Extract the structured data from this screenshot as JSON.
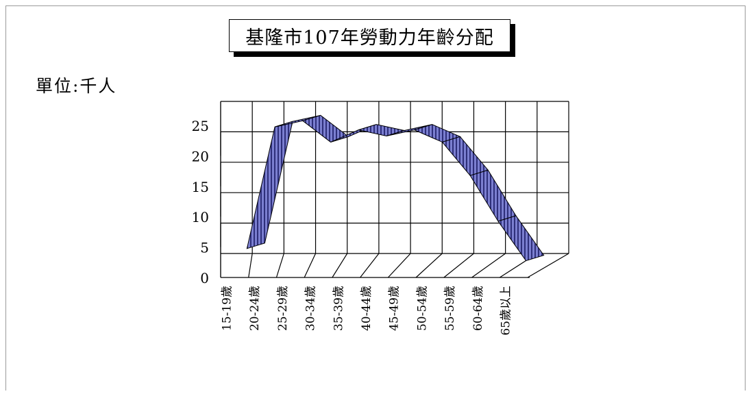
{
  "chart_data": {
    "type": "line",
    "title": "基隆市107年勞動力年齡分配",
    "unit_label": "單位:千人",
    "categories": [
      "15-19歲",
      "20-24歲",
      "25-29歲",
      "30-34歲",
      "35-39歲",
      "40-44歲",
      "45-49歲",
      "50-54歲",
      "55-59歲",
      "60-64歲",
      "65歲以上"
    ],
    "series": [
      {
        "values": [
          2.5,
          22.5,
          23.5,
          20.0,
          22.0,
          21.0,
          22.0,
          20.0,
          14.5,
          7.0,
          0.5
        ]
      }
    ],
    "yticks": [
      "0",
      "5",
      "10",
      "15",
      "20",
      "25"
    ],
    "ylim": [
      0,
      25
    ],
    "grid": true,
    "style": "3d-ribbon",
    "colors": {
      "ribbon_fill": "#7b7fd0",
      "ribbon_stripe": "#2e2f7a",
      "grid": "#000000"
    }
  }
}
